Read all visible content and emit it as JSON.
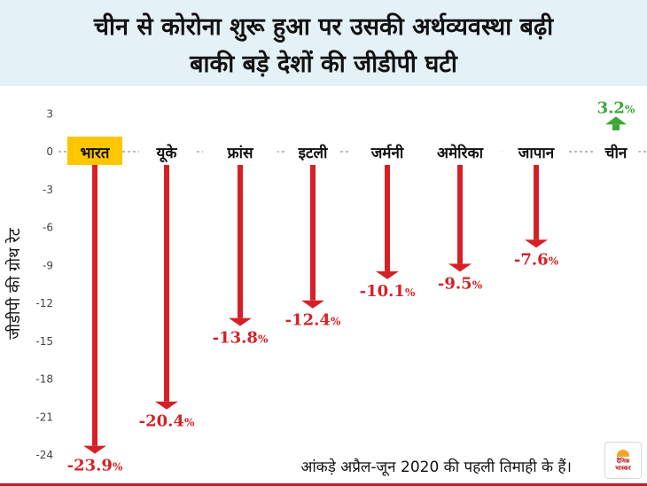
{
  "header": {
    "line1": "चीन से कोरोना शुरू हुआ पर उसकी अर्थव्यवस्था बढ़ी",
    "line2": "बाकी बड़े देशों की जीडीपी घटी"
  },
  "chart_data": {
    "type": "bar",
    "title": "चीन से कोरोना शुरू हुआ पर उसकी अर्थव्यवस्था बढ़ी / बाकी बड़े देशों की जीडीपी घटी",
    "ylabel": "जीडीपी की ग्रोथ रेट",
    "xlabel": "",
    "ylim": [
      -24,
      3
    ],
    "yticks": [
      3,
      0,
      -3,
      -6,
      -9,
      -12,
      -15,
      -18,
      -21,
      -24
    ],
    "categories": [
      "भारत",
      "यूके",
      "फ्रांस",
      "इटली",
      "जर्मनी",
      "अमेरिका",
      "जापान",
      "चीन"
    ],
    "values": [
      -23.9,
      -20.4,
      -13.8,
      -12.4,
      -10.1,
      -9.5,
      -7.6,
      3.2
    ],
    "value_suffix": "%",
    "colors": {
      "negative": "#d62027",
      "positive": "#3aa935",
      "highlight_bg": "#ffc600",
      "highlight_text": "#d62027"
    },
    "highlight_category": "भारत",
    "grid": false
  },
  "footnote": "आंकड़े अप्रैल-जून 2020 की पहली तिमाही के हैं।",
  "logo": {
    "line1": "दैनिक",
    "line2": "भास्कर"
  }
}
